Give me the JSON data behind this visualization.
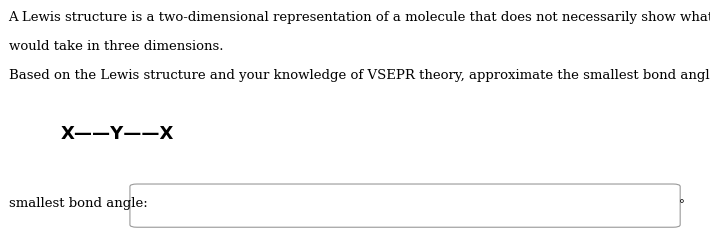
{
  "background_color": "#ffffff",
  "paragraph1_line1": "A Lewis structure is a two-dimensional representation of a molecule that does not necessarily show what shape that molecule",
  "paragraph1_line2": "would take in three dimensions.",
  "paragraph2": "Based on the Lewis structure and your knowledge of VSEPR theory, approximate the smallest bond angle in this molecule.",
  "molecule_label": "X——Y——X",
  "degree_symbol": "°",
  "bottom_label": "smallest bond angle:",
  "text_fontsize": 9.5,
  "molecule_fontsize": 13,
  "label_fontsize": 9.5,
  "fig_width": 7.1,
  "fig_height": 2.47,
  "dpi": 100
}
